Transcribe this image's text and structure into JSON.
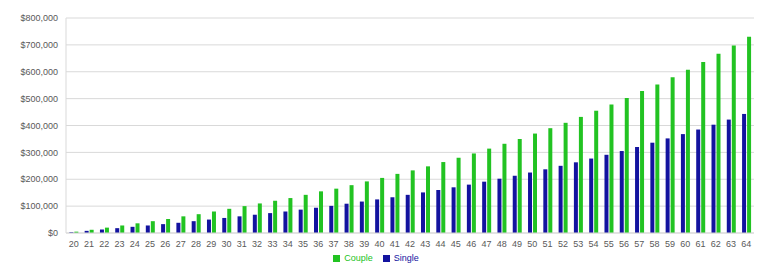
{
  "chart_data": {
    "type": "bar",
    "categories": [
      "20",
      "21",
      "22",
      "23",
      "24",
      "25",
      "26",
      "27",
      "28",
      "29",
      "30",
      "31",
      "32",
      "33",
      "34",
      "35",
      "36",
      "37",
      "38",
      "39",
      "40",
      "41",
      "42",
      "43",
      "44",
      "45",
      "46",
      "47",
      "48",
      "49",
      "50",
      "51",
      "52",
      "53",
      "54",
      "55",
      "56",
      "57",
      "58",
      "59",
      "60",
      "61",
      "62",
      "63",
      "64"
    ],
    "series": [
      {
        "name": "Single",
        "color": "#13139f",
        "values": [
          3000,
          8000,
          13000,
          18000,
          23000,
          28000,
          33000,
          38000,
          44000,
          50000,
          56000,
          62000,
          68000,
          74000,
          80000,
          87000,
          94000,
          101000,
          109000,
          117000,
          125000,
          133000,
          142000,
          151000,
          160000,
          170000,
          180000,
          191000,
          202000,
          213000,
          225000,
          237000,
          250000,
          263000,
          277000,
          291000,
          305000,
          320000,
          336000,
          352000,
          368000,
          385000,
          403000,
          422000,
          443000
        ]
      },
      {
        "name": "Couple",
        "color": "#22c322",
        "values": [
          5000,
          12000,
          20000,
          28000,
          36000,
          44000,
          52000,
          62000,
          70000,
          80000,
          90000,
          100000,
          110000,
          120000,
          130000,
          142000,
          155000,
          165000,
          178000,
          192000,
          205000,
          220000,
          233000,
          248000,
          264000,
          280000,
          296000,
          314000,
          332000,
          350000,
          370000,
          390000,
          410000,
          432000,
          455000,
          478000,
          502000,
          528000,
          553000,
          580000,
          607000,
          636000,
          667000,
          698000,
          730000
        ]
      }
    ],
    "ylim": [
      0,
      800000
    ],
    "yticks": [
      {
        "value": 0,
        "label": "$0"
      },
      {
        "value": 100000,
        "label": "$100,000"
      },
      {
        "value": 200000,
        "label": "$200,000"
      },
      {
        "value": 300000,
        "label": "$300,000"
      },
      {
        "value": 400000,
        "label": "$400,000"
      },
      {
        "value": 500000,
        "label": "$500,000"
      },
      {
        "value": 600000,
        "label": "$600,000"
      },
      {
        "value": 700000,
        "label": "$700,000"
      },
      {
        "value": 800000,
        "label": "$800,000"
      }
    ],
    "grid": true,
    "legend": "bottom"
  }
}
